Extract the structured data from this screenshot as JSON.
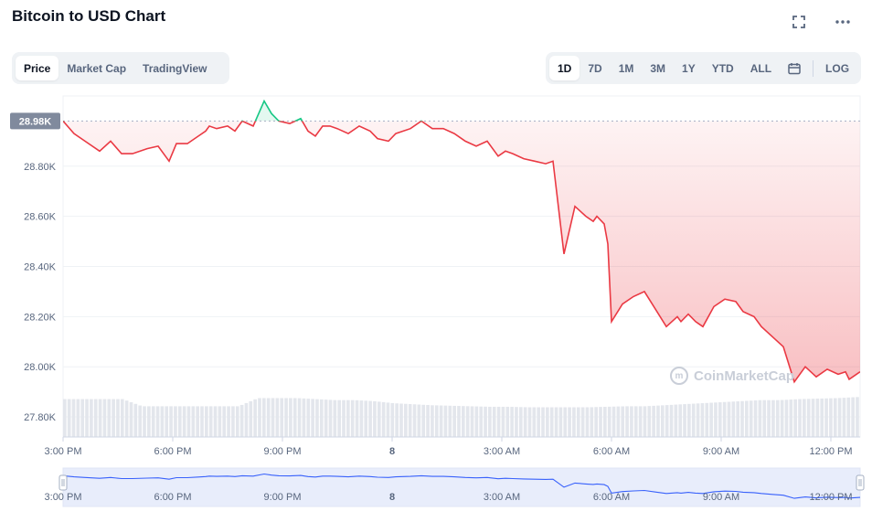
{
  "header": {
    "title": "Bitcoin to USD Chart",
    "fullscreen_icon": "expand-icon",
    "more_icon": "ellipsis-icon"
  },
  "view_tabs": [
    {
      "label": "Price",
      "active": true
    },
    {
      "label": "Market Cap",
      "active": false
    },
    {
      "label": "TradingView",
      "active": false
    }
  ],
  "range_tabs": [
    {
      "label": "1D",
      "active": true
    },
    {
      "label": "7D",
      "active": false
    },
    {
      "label": "1M",
      "active": false
    },
    {
      "label": "3M",
      "active": false
    },
    {
      "label": "1Y",
      "active": false
    },
    {
      "label": "YTD",
      "active": false
    },
    {
      "label": "ALL",
      "active": false
    }
  ],
  "calendar_icon": "calendar-icon",
  "log_label": "LOG",
  "watermark": "CoinMarketCap",
  "colors": {
    "up": "#16c784",
    "down": "#ea3943",
    "volume": "#e3e6ec",
    "navigator_fill": "#e8edfb",
    "navigator_line": "#3861fb"
  },
  "chart_data": {
    "type": "line",
    "title": "Bitcoin to USD Chart",
    "reference_label": "28.98K",
    "reference_value": 28980,
    "ylim": [
      27720,
      29080
    ],
    "y_ticks": [
      "28.80K",
      "28.60K",
      "28.40K",
      "28.20K",
      "28.00K",
      "27.80K"
    ],
    "y_tick_values": [
      28800,
      28600,
      28400,
      28200,
      28000,
      27800
    ],
    "x_ticks": [
      "3:00 PM",
      "6:00 PM",
      "9:00 PM",
      "8",
      "3:00 AM",
      "6:00 AM",
      "9:00 AM",
      "12:00 PM"
    ],
    "x_tick_hours": [
      3,
      6,
      9,
      12,
      15,
      18,
      21,
      24
    ],
    "x_range_hours": [
      3,
      24.8
    ],
    "grid": true,
    "series": [
      {
        "x": [
          3.0,
          3.3,
          3.6,
          4.0,
          4.3,
          4.6,
          4.9,
          5.3,
          5.6,
          5.9,
          6.1,
          6.4,
          6.7,
          6.9,
          7.0,
          7.2,
          7.5,
          7.7,
          7.9,
          8.2,
          8.5,
          8.7,
          8.9,
          9.2,
          9.5,
          9.7,
          9.9,
          10.1,
          10.3,
          10.5,
          10.8,
          11.1,
          11.4,
          11.6,
          11.9,
          12.1,
          12.5,
          12.8,
          13.1,
          13.4,
          13.7,
          14.0,
          14.3,
          14.6,
          14.9,
          15.1,
          15.3,
          15.6,
          15.9,
          16.2,
          16.4,
          16.7,
          17.0,
          17.3,
          17.5,
          17.6,
          17.8,
          17.9,
          18.0,
          18.3,
          18.6,
          18.9,
          19.2,
          19.5,
          19.8,
          19.9,
          20.1,
          20.3,
          20.5,
          20.8,
          21.1,
          21.4,
          21.6,
          21.9,
          22.1,
          22.4,
          22.7,
          23.0,
          23.3,
          23.6,
          23.9,
          24.2,
          24.4,
          24.5,
          24.6,
          24.8
        ],
        "y": [
          28980,
          28930,
          28900,
          28860,
          28900,
          28850,
          28850,
          28870,
          28880,
          28820,
          28890,
          28890,
          28920,
          28940,
          28960,
          28950,
          28960,
          28940,
          28980,
          28960,
          29060,
          29010,
          28980,
          28970,
          28990,
          28940,
          28920,
          28960,
          28960,
          28950,
          28930,
          28960,
          28940,
          28910,
          28900,
          28930,
          28950,
          28980,
          28950,
          28950,
          28930,
          28900,
          28880,
          28900,
          28840,
          28860,
          28850,
          28830,
          28820,
          28810,
          28820,
          28450,
          28640,
          28600,
          28580,
          28600,
          28570,
          28490,
          28180,
          28250,
          28280,
          28300,
          28230,
          28160,
          28200,
          28180,
          28210,
          28180,
          28160,
          28240,
          28270,
          28260,
          28220,
          28200,
          28160,
          28120,
          28080,
          27940,
          28000,
          27960,
          27990,
          27970,
          27980,
          27950,
          27960,
          27980
        ],
        "name": ""
      }
    ],
    "volume": [
      0.74,
      0.74,
      0.74,
      0.74,
      0.6,
      0.6,
      0.6,
      0.6,
      0.6,
      0.6,
      0.76,
      0.76,
      0.76,
      0.74,
      0.72,
      0.72,
      0.7,
      0.66,
      0.64,
      0.62,
      0.61,
      0.6,
      0.59,
      0.59,
      0.58,
      0.58,
      0.58,
      0.58,
      0.59,
      0.6,
      0.6,
      0.62,
      0.64,
      0.66,
      0.68,
      0.7,
      0.72,
      0.72,
      0.74,
      0.75,
      0.76,
      0.78
    ],
    "navigator_x_ticks": [
      "3:00 PM",
      "6:00 PM",
      "9:00 PM",
      "8",
      "3:00 AM",
      "6:00 AM",
      "9:00 AM",
      "12:00 PM"
    ]
  }
}
